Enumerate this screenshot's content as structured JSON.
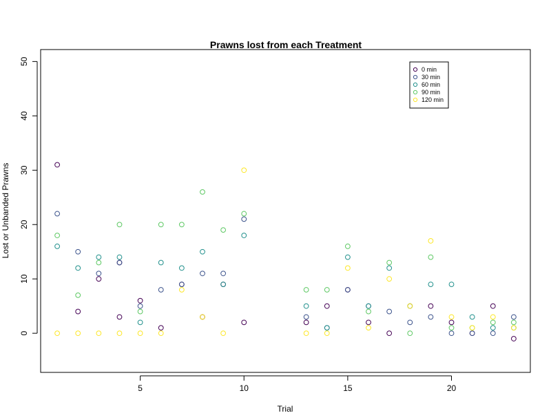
{
  "chart_data": {
    "type": "scatter",
    "title": "Prawns lost from each Treatment",
    "xlabel": "Trial",
    "ylabel": "Lost or Unbanded Prawns",
    "xlim": [
      0.2,
      23.8
    ],
    "ylim": [
      -7.2,
      52.2
    ],
    "xticks": [
      5,
      10,
      15,
      20
    ],
    "yticks": [
      0,
      10,
      20,
      30,
      40,
      50
    ],
    "legend_position": "top-right",
    "grid": false,
    "series": [
      {
        "name": "0 min",
        "color": "#440154",
        "points": [
          [
            1,
            31
          ],
          [
            2,
            4
          ],
          [
            3,
            10
          ],
          [
            4,
            13
          ],
          [
            4,
            3
          ],
          [
            5,
            6
          ],
          [
            6,
            1
          ],
          [
            7,
            9
          ],
          [
            8,
            3
          ],
          [
            9,
            9
          ],
          [
            10,
            2
          ],
          [
            13,
            2
          ],
          [
            14,
            5
          ],
          [
            15,
            8
          ],
          [
            16,
            2
          ],
          [
            17,
            0
          ],
          [
            18,
            5
          ],
          [
            19,
            5
          ],
          [
            20,
            2
          ],
          [
            21,
            0
          ],
          [
            22,
            5
          ],
          [
            23,
            -1
          ]
        ]
      },
      {
        "name": "30 min",
        "color": "#3B528B",
        "points": [
          [
            1,
            22
          ],
          [
            2,
            15
          ],
          [
            3,
            11
          ],
          [
            4,
            13
          ],
          [
            5,
            5
          ],
          [
            6,
            8
          ],
          [
            7,
            9
          ],
          [
            8,
            11
          ],
          [
            9,
            11
          ],
          [
            10,
            21
          ],
          [
            13,
            3
          ],
          [
            14,
            1
          ],
          [
            15,
            8
          ],
          [
            16,
            5
          ],
          [
            17,
            4
          ],
          [
            18,
            2
          ],
          [
            19,
            3
          ],
          [
            20,
            0
          ],
          [
            21,
            0
          ],
          [
            22,
            0
          ],
          [
            23,
            3
          ]
        ]
      },
      {
        "name": "60 min",
        "color": "#21908C",
        "points": [
          [
            1,
            16
          ],
          [
            2,
            12
          ],
          [
            3,
            14
          ],
          [
            4,
            14
          ],
          [
            5,
            2
          ],
          [
            6,
            13
          ],
          [
            7,
            12
          ],
          [
            8,
            15
          ],
          [
            9,
            9
          ],
          [
            10,
            18
          ],
          [
            13,
            5
          ],
          [
            14,
            1
          ],
          [
            15,
            14
          ],
          [
            16,
            5
          ],
          [
            17,
            12
          ],
          [
            18,
            5
          ],
          [
            19,
            9
          ],
          [
            20,
            9
          ],
          [
            21,
            3
          ],
          [
            22,
            1
          ],
          [
            23,
            1
          ]
        ]
      },
      {
        "name": "90 min",
        "color": "#5DC863",
        "points": [
          [
            1,
            18
          ],
          [
            2,
            7
          ],
          [
            3,
            13
          ],
          [
            4,
            20
          ],
          [
            5,
            4
          ],
          [
            6,
            20
          ],
          [
            7,
            20
          ],
          [
            8,
            26
          ],
          [
            9,
            19
          ],
          [
            10,
            22
          ],
          [
            13,
            8
          ],
          [
            14,
            8
          ],
          [
            15,
            16
          ],
          [
            16,
            4
          ],
          [
            17,
            13
          ],
          [
            18,
            0
          ],
          [
            19,
            14
          ],
          [
            20,
            1
          ],
          [
            21,
            1
          ],
          [
            22,
            2
          ],
          [
            23,
            2
          ]
        ]
      },
      {
        "name": "120 min",
        "color": "#FDE725",
        "points": [
          [
            1,
            0
          ],
          [
            2,
            0
          ],
          [
            3,
            0
          ],
          [
            4,
            0
          ],
          [
            5,
            0
          ],
          [
            6,
            0
          ],
          [
            7,
            8
          ],
          [
            8,
            3
          ],
          [
            9,
            0
          ],
          [
            10,
            30
          ],
          [
            13,
            0
          ],
          [
            14,
            0
          ],
          [
            15,
            12
          ],
          [
            16,
            1
          ],
          [
            17,
            10
          ],
          [
            18,
            5
          ],
          [
            19,
            17
          ],
          [
            20,
            3
          ],
          [
            21,
            1
          ],
          [
            22,
            3
          ],
          [
            23,
            1
          ]
        ]
      }
    ]
  }
}
